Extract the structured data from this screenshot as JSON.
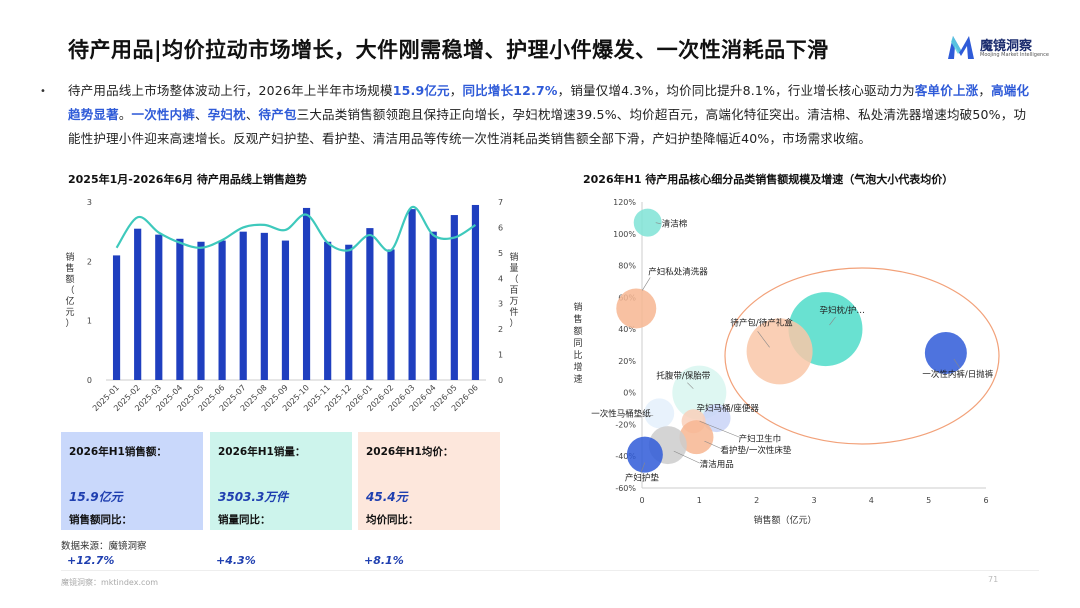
{
  "header": {
    "title": "待产用品|均价拉动市场增长，大件刚需稳增、护理小件爆发、一次性消耗品下滑",
    "logo_text": "魔镜洞察",
    "logo_sub": "Moojing Market Intelligence"
  },
  "summary": {
    "bullet": "•",
    "segments": [
      {
        "text": "待产用品线上市场整体波动上行，2026年上半年市场规模",
        "hl": false
      },
      {
        "text": "15.9亿元",
        "hl": true
      },
      {
        "text": "，",
        "hl": false
      },
      {
        "text": "同比增长12.7%",
        "hl": true
      },
      {
        "text": "，销量仅增4.3%，均价同比提升8.1%，行业增长核心驱动力为",
        "hl": false
      },
      {
        "text": "客单价上涨",
        "hl": true
      },
      {
        "text": "，",
        "hl": false
      },
      {
        "text": "高端化趋势显著",
        "hl": true
      },
      {
        "text": "。",
        "hl": false
      },
      {
        "text": "一次性内裤",
        "hl": true
      },
      {
        "text": "、",
        "hl": false
      },
      {
        "text": "孕妇枕",
        "hl": true
      },
      {
        "text": "、",
        "hl": false
      },
      {
        "text": "待产包",
        "hl": true
      },
      {
        "text": "三大品类销售额领跑且保持正向增长，孕妇枕增速39.5%、均价超百元，高端化特征突出。清洁棉、私处清洗器增速均破50%，功能性护理小件迎来高速增长。反观产妇护垫、看护垫、清洁用品等传统一次性消耗品类销售额全部下滑，产妇护垫降幅近40%，市场需求收缩。",
        "hl": false
      }
    ]
  },
  "chart_data": [
    {
      "type": "bar",
      "title": "2025年1月-2026年6月 待产用品线上销售趋势",
      "categories": [
        "2025-01",
        "2025-02",
        "2025-03",
        "2025-04",
        "2025-05",
        "2025-06",
        "2025-07",
        "2025-08",
        "2025-09",
        "2025-10",
        "2025-11",
        "2025-12",
        "2026-01",
        "2026-02",
        "2026-03",
        "2026-04",
        "2026-05",
        "2026-06"
      ],
      "series": [
        {
          "name": "",
          "kind": "bar",
          "axis": "left",
          "values": [
            2.1,
            2.55,
            2.45,
            2.38,
            2.33,
            2.35,
            2.5,
            2.48,
            2.35,
            2.9,
            2.33,
            2.28,
            2.56,
            2.2,
            2.88,
            2.5,
            2.78,
            2.95
          ]
        },
        {
          "name": "",
          "kind": "line",
          "axis": "right",
          "values": [
            5.2,
            6.4,
            5.8,
            5.4,
            5.2,
            5.5,
            6.0,
            6.1,
            5.9,
            6.5,
            5.4,
            5.1,
            5.7,
            5.1,
            6.8,
            5.7,
            5.6,
            6.1
          ]
        }
      ],
      "ylabel": "销售额（亿元）",
      "ylabel2": "销量（百万件）",
      "ylim": [
        0,
        3
      ],
      "yticks": [
        "0",
        "1",
        "2",
        "3"
      ],
      "ylim2": [
        0,
        7
      ],
      "yticks2": [
        "0",
        "1",
        "2",
        "3",
        "4",
        "5",
        "6",
        "7"
      ],
      "colors": {
        "bar": "#1f3fbf",
        "line": "#3ec9bc"
      }
    },
    {
      "type": "scatter",
      "subtype": "bubble",
      "title": "2026年H1 待产用品核心细分品类销售额规模及增速（气泡大小代表均价）",
      "xlabel": "销售额（亿元）",
      "ylabel": "销售额同比增速",
      "xlim": [
        0,
        6
      ],
      "xticks": [
        "0",
        "1",
        "2",
        "3",
        "4",
        "5",
        "6"
      ],
      "ylim": [
        -60,
        120
      ],
      "yticks": [
        "-60%",
        "-40%",
        "-20%",
        "0%",
        "20%",
        "40%",
        "60%",
        "80%",
        "100%",
        "120%"
      ],
      "points": [
        {
          "label": "清洁棉",
          "x": 0.1,
          "y": 107,
          "size": 14,
          "color": "#7fe3d6"
        },
        {
          "label": "产妇私处清洗器",
          "x": -0.1,
          "y": 53,
          "size": 20,
          "color": "#f7b692"
        },
        {
          "label": "孕妇枕/护…",
          "x": 3.2,
          "y": 40,
          "size": 37,
          "color": "#4fdcc9"
        },
        {
          "label": "待产包/待产礼盒",
          "x": 2.4,
          "y": 26,
          "size": 33,
          "color": "#f9c7a8"
        },
        {
          "label": "一次性内裤/日抛裤",
          "x": 5.3,
          "y": 25,
          "size": 21,
          "color": "#2f5bd8"
        },
        {
          "label": "托腹带/保胎带",
          "x": 1.0,
          "y": 0,
          "size": 27,
          "color": "#d8f6f0"
        },
        {
          "label": "孕妇马桶/座便器",
          "x": 1.3,
          "y": -16,
          "size": 14,
          "color": "#c9d3f7"
        },
        {
          "label": "一次性马桶垫纸",
          "x": 0.3,
          "y": -13,
          "size": 15,
          "color": "#e4f0fb"
        },
        {
          "label": "产妇卫生巾",
          "x": 0.9,
          "y": -18,
          "size": 12,
          "color": "#f9d0bb"
        },
        {
          "label": "看护垫/一次性床垫",
          "x": 0.95,
          "y": -28,
          "size": 17,
          "color": "#f7b692"
        },
        {
          "label": "清洁用品",
          "x": 0.45,
          "y": -33,
          "size": 19,
          "color": "#cccccc"
        },
        {
          "label": "产妇护垫",
          "x": 0.05,
          "y": -39,
          "size": 18,
          "color": "#2f5bd8"
        }
      ],
      "highlight_color": "#f2a179"
    }
  ],
  "kpis": [
    {
      "head": "2026年H1销售额：",
      "value": "15.9亿元",
      "sub": "销售额同比：",
      "yoy": "+12.7%"
    },
    {
      "head": "2026年H1销量：",
      "value": "3503.3万件",
      "sub": "销量同比：",
      "yoy": "+4.3%"
    },
    {
      "head": "2026年H1均价：",
      "value": "45.4元",
      "sub": "均价同比：",
      "yoy": "+8.1%"
    }
  ],
  "source": "数据来源：魔镜洞察",
  "footer": "魔镜洞察：mktindex.com",
  "page_num": "71"
}
